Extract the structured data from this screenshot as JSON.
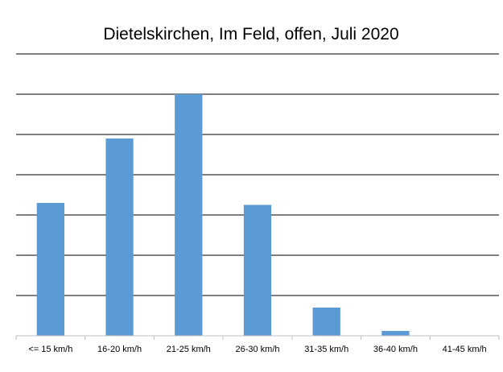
{
  "chart_data": {
    "type": "bar",
    "title": "Dietelskirchen, Im Feld, offen, Juli 2020",
    "xlabel": "",
    "ylabel": "",
    "categories": [
      "<= 15 km/h",
      "16-20 km/h",
      "21-25 km/h",
      "26-30 km/h",
      "31-35 km/h",
      "36-40 km/h",
      "41-45 km/h"
    ],
    "values": [
      3.3,
      4.9,
      6.0,
      3.25,
      0.7,
      0.12,
      0
    ],
    "ylim": [
      0,
      7
    ],
    "y_tick_labels_shown": false,
    "grid": true,
    "legend": "none",
    "colors": {
      "bar": "#5b9bd5",
      "grid": "#000000",
      "axis": "#bfbfbf"
    }
  }
}
